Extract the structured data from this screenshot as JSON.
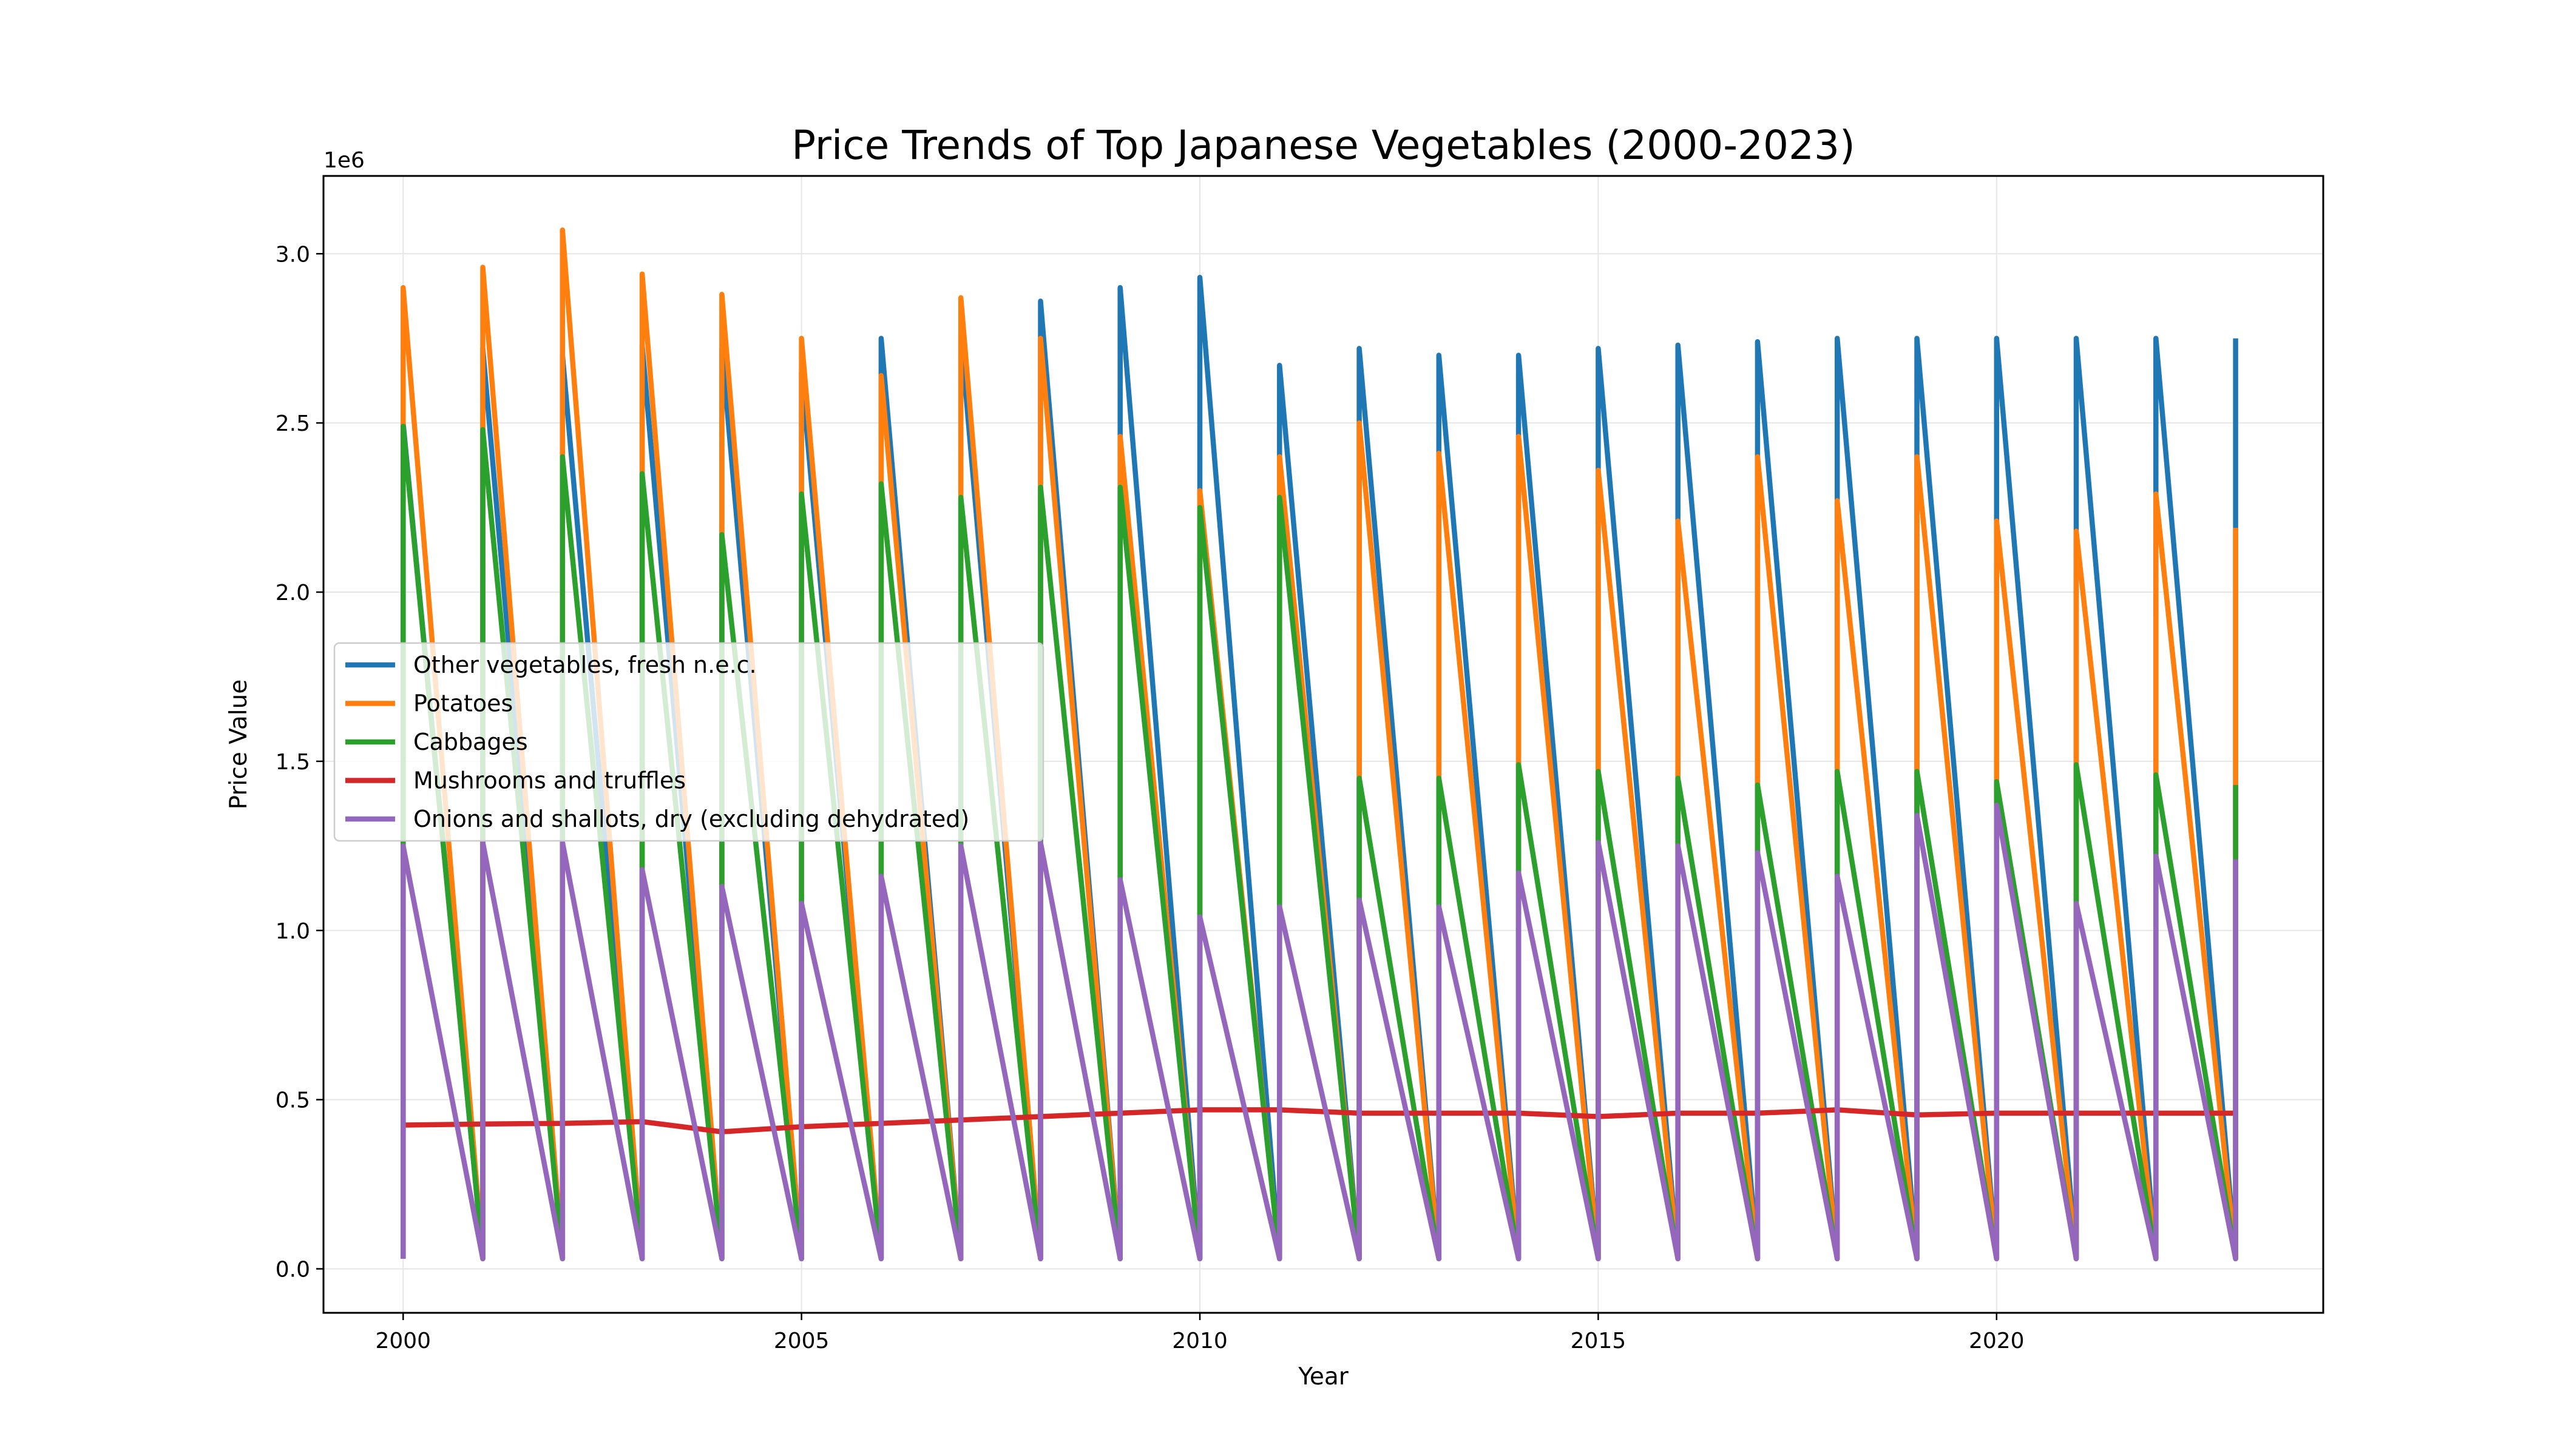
{
  "chart_data": {
    "type": "line",
    "title": "Price Trends of Top Japanese Vegetables (2000-2023)",
    "xlabel": "Year",
    "ylabel": "Price Value",
    "y_offset_label": "1e6",
    "xlim": [
      1999,
      2024.1
    ],
    "ylim": [
      -0.13,
      3.23
    ],
    "x_ticks": [
      2000,
      2005,
      2010,
      2015,
      2020
    ],
    "y_ticks": [
      0.0,
      0.5,
      1.0,
      1.5,
      2.0,
      2.5,
      3.0
    ],
    "y_tick_labels": [
      "0.0",
      "0.5",
      "1.0",
      "1.5",
      "2.0",
      "2.5",
      "3.0"
    ],
    "y_unit_scale": 1000000,
    "grid": true,
    "legend_position": "center-left",
    "years": [
      2000,
      2001,
      2002,
      2003,
      2004,
      2005,
      2006,
      2007,
      2008,
      2009,
      2010,
      2011,
      2012,
      2013,
      2014,
      2015,
      2016,
      2017,
      2018,
      2019,
      2020,
      2021,
      2022,
      2023
    ],
    "series": [
      {
        "name": "Other vegetables, fresh n.e.c.",
        "color": "#1f77b4",
        "pattern": "sawtooth",
        "low": 0.03,
        "peaks": [
          2.5,
          2.72,
          2.7,
          2.73,
          2.72,
          2.65,
          2.75,
          2.76,
          2.86,
          2.9,
          2.93,
          2.67,
          2.72,
          2.7,
          2.7,
          2.72,
          2.73,
          2.74,
          2.75,
          2.75,
          2.75,
          2.75,
          2.75,
          2.75
        ]
      },
      {
        "name": "Potatoes",
        "color": "#ff7f0e",
        "pattern": "sawtooth",
        "low": 0.03,
        "peaks": [
          2.9,
          2.96,
          3.07,
          2.94,
          2.88,
          2.75,
          2.64,
          2.87,
          2.75,
          2.46,
          2.3,
          2.4,
          2.5,
          2.41,
          2.46,
          2.36,
          2.21,
          2.4,
          2.27,
          2.4,
          2.21,
          2.18,
          2.29,
          2.19
        ]
      },
      {
        "name": "Cabbages",
        "color": "#2ca02c",
        "pattern": "sawtooth",
        "low": 0.03,
        "peaks": [
          2.49,
          2.48,
          2.4,
          2.35,
          2.17,
          2.29,
          2.32,
          2.28,
          2.31,
          2.31,
          2.25,
          2.28,
          1.45,
          1.45,
          1.49,
          1.47,
          1.45,
          1.43,
          1.47,
          1.47,
          1.44,
          1.49,
          1.46,
          1.43
        ]
      },
      {
        "name": "Mushrooms and truffles",
        "color": "#d62728",
        "pattern": "line",
        "values": [
          0.425,
          0.428,
          0.43,
          0.435,
          0.405,
          0.42,
          0.43,
          0.44,
          0.45,
          0.46,
          0.47,
          0.47,
          0.46,
          0.46,
          0.46,
          0.45,
          0.46,
          0.46,
          0.47,
          0.455,
          0.46,
          0.46,
          0.46,
          0.46
        ]
      },
      {
        "name": "Onions and shallots, dry (excluding dehydrated)",
        "color": "#9467bd",
        "pattern": "sawtooth",
        "low": 0.03,
        "peaks": [
          1.25,
          1.26,
          1.26,
          1.18,
          1.13,
          1.08,
          1.16,
          1.25,
          1.26,
          1.15,
          1.04,
          1.07,
          1.09,
          1.07,
          1.17,
          1.26,
          1.25,
          1.23,
          1.16,
          1.34,
          1.37,
          1.08,
          1.22,
          1.21
        ]
      }
    ]
  }
}
